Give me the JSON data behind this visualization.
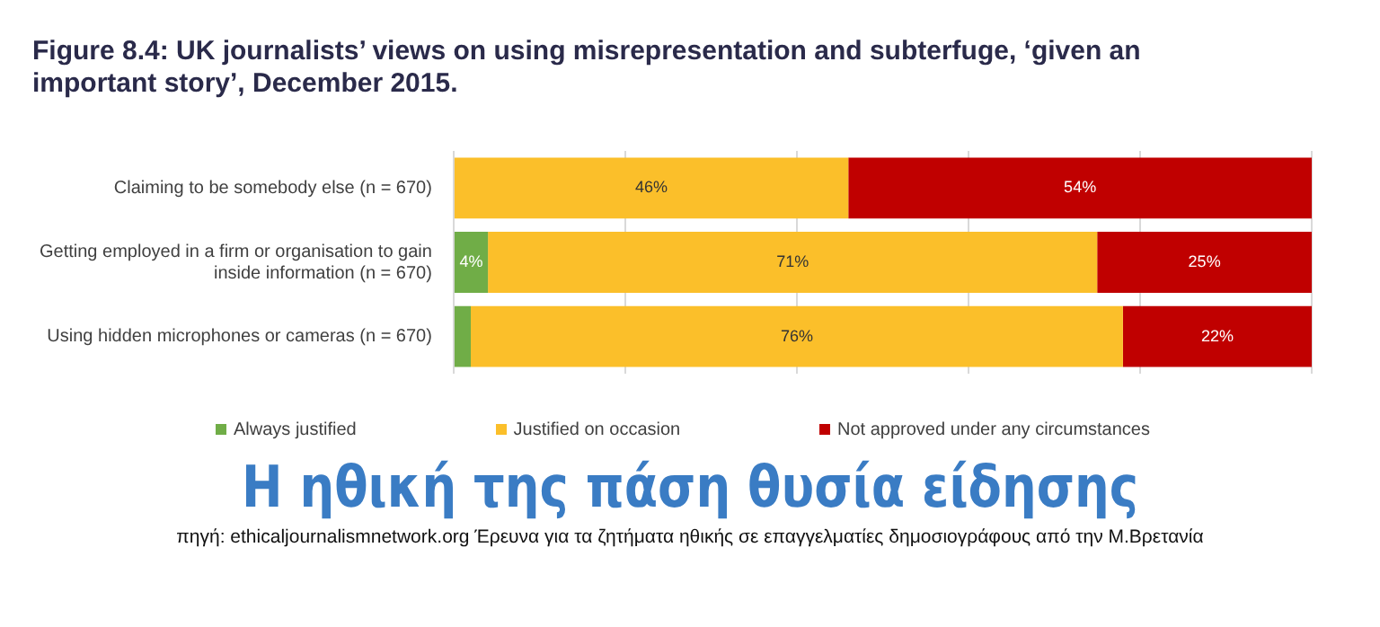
{
  "chart_data": {
    "type": "bar",
    "title": "Figure 8.4: UK journalists’ views on using misrepresentation and subterfuge, ‘given an important story’, December 2015.",
    "categories": [
      "Claiming to be somebody else (n = 670)",
      "Getting employed in a firm or organisation to gain inside information (n = 670)",
      "Using hidden microphones or cameras (n = 670)"
    ],
    "orientation": "horizontal",
    "stacked": true,
    "series": [
      {
        "name": "Always justified",
        "color": "#70ad47",
        "values": [
          0,
          4,
          2
        ],
        "value_labels": [
          null,
          "4%",
          null
        ]
      },
      {
        "name": "Justified on occasion",
        "color": "#fbbf2a",
        "values": [
          46,
          71,
          76
        ],
        "value_labels": [
          "46%",
          "71%",
          "76%"
        ]
      },
      {
        "name": "Not approved under any circumstances",
        "color": "#c00000",
        "values": [
          54,
          25,
          22
        ],
        "value_labels": [
          "54%",
          "25%",
          "22%"
        ]
      }
    ],
    "xlim": [
      0,
      100
    ],
    "xticks": [
      {
        "value": 0,
        "label": null
      },
      {
        "value": 20,
        "label": null
      },
      {
        "value": 40,
        "label": null
      },
      {
        "value": 60,
        "label": null
      },
      {
        "value": 80,
        "label": null
      },
      {
        "value": 100,
        "label": null
      }
    ],
    "grid": "x",
    "legend": "bottom",
    "tick_labels": "y",
    "annotations": [
      "Η ηθική της πάση θυσία είδησης",
      "πηγή: ethicaljournalismnetwork.org  Έρευνα για τα ζητήματα ηθικής σε επαγγελματίες δημοσιογράφους από την Μ.Βρετανία"
    ]
  }
}
